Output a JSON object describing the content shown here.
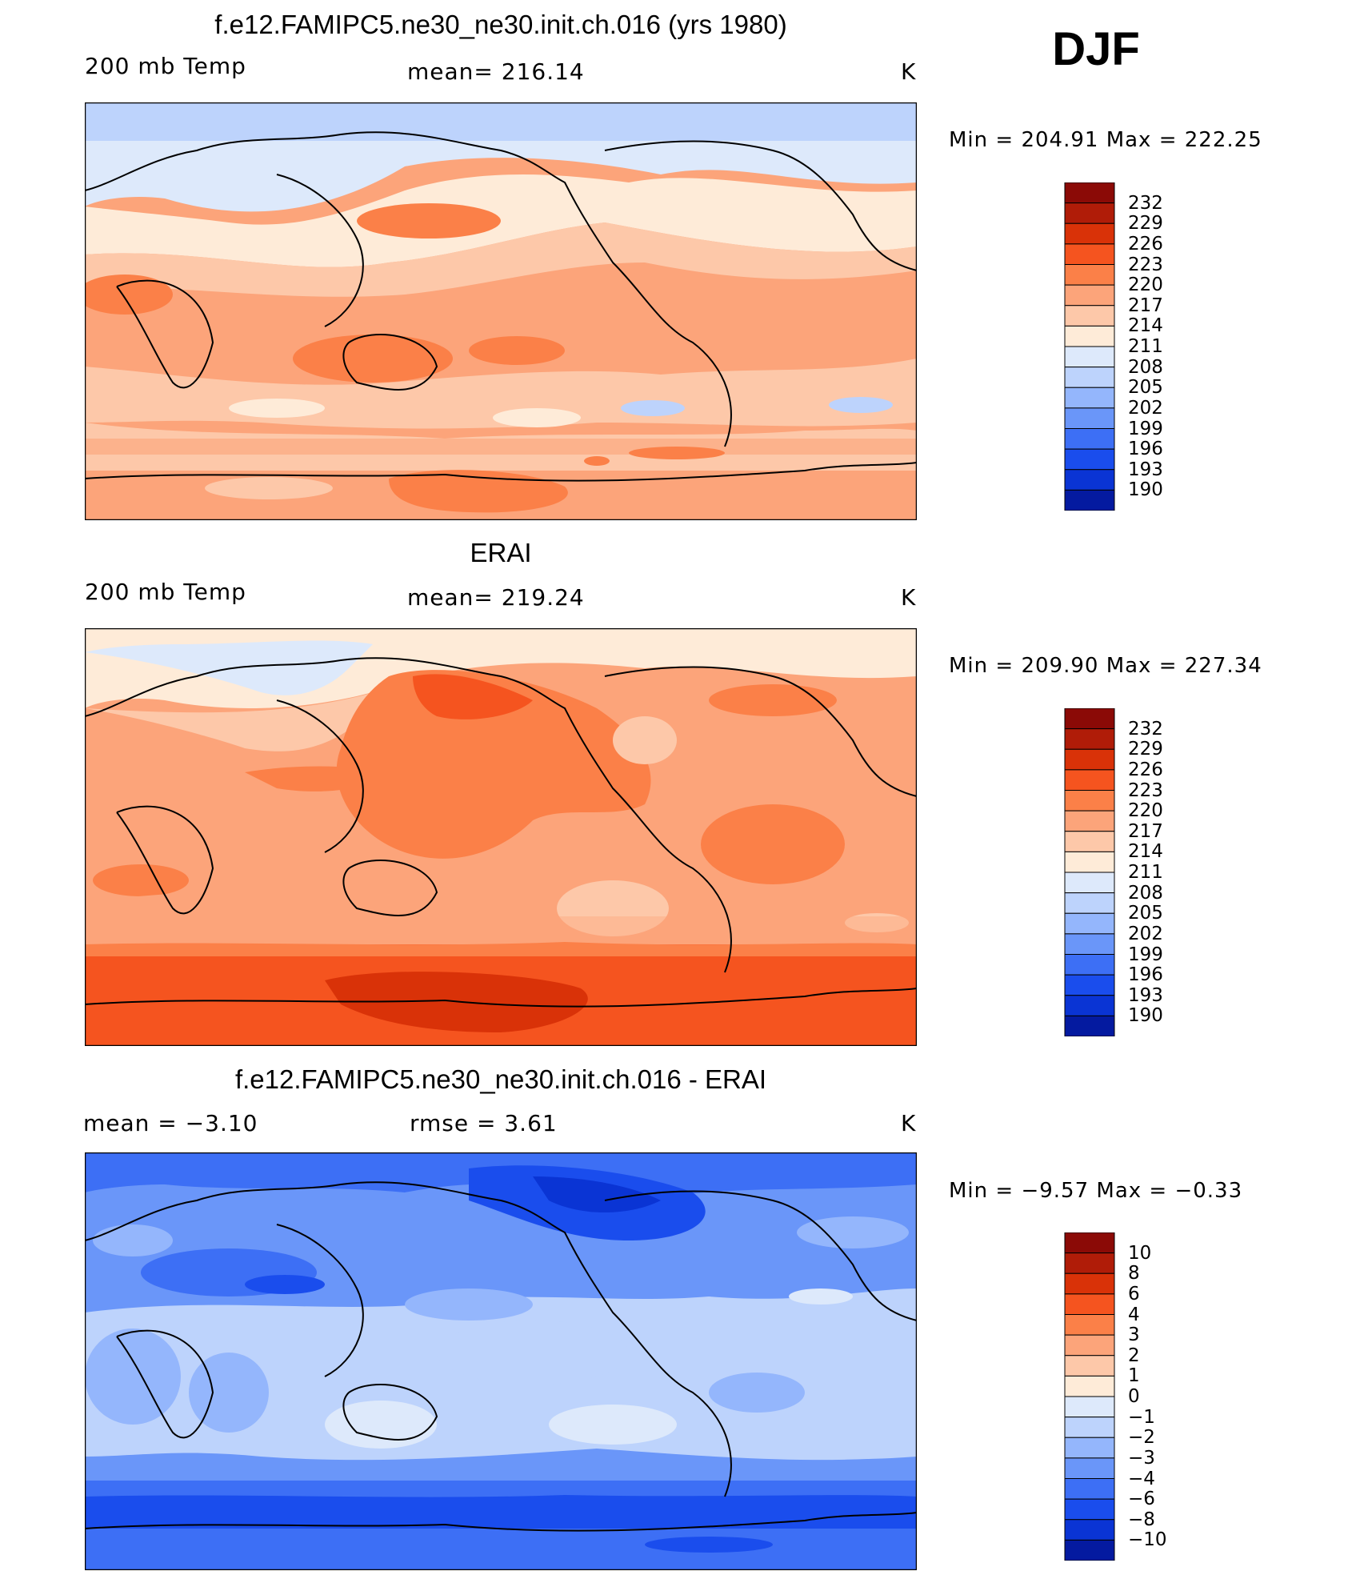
{
  "season": "DJF",
  "units": "K",
  "panels": [
    {
      "title": "f.e12.FAMIPC5.ne30_ne30.init.ch.016 (yrs 1980)",
      "left_label": "200 mb Temp",
      "center_label": "mean=  216.14",
      "right_label": "K",
      "minmax": "Min  =  204.91  Max  =  222.25",
      "colorbar_labels": [
        "232",
        "229",
        "226",
        "223",
        "220",
        "217",
        "214",
        "211",
        "208",
        "205",
        "202",
        "199",
        "196",
        "193",
        "190"
      ],
      "colorbar_colors": [
        "#8b0a06",
        "#b01c08",
        "#d93208",
        "#f5541f",
        "#fb8048",
        "#fca47a",
        "#fdc8a9",
        "#feebd8",
        "#dde9fb",
        "#bdd3fc",
        "#94b6fc",
        "#6a96f9",
        "#3d6ff5",
        "#1a4ded",
        "#0a34d4",
        "#041aa0"
      ]
    },
    {
      "title": "ERAI",
      "left_label": "200 mb Temp",
      "center_label": "mean=  219.24",
      "right_label": "K",
      "minmax": "Min  =  209.90  Max  =  227.34",
      "colorbar_labels": [
        "232",
        "229",
        "226",
        "223",
        "220",
        "217",
        "214",
        "211",
        "208",
        "205",
        "202",
        "199",
        "196",
        "193",
        "190"
      ],
      "colorbar_colors": [
        "#8b0a06",
        "#b01c08",
        "#d93208",
        "#f5541f",
        "#fb8048",
        "#fca47a",
        "#fdc8a9",
        "#feebd8",
        "#dde9fb",
        "#bdd3fc",
        "#94b6fc",
        "#6a96f9",
        "#3d6ff5",
        "#1a4ded",
        "#0a34d4",
        "#041aa0"
      ]
    },
    {
      "title": "f.e12.FAMIPC5.ne30_ne30.init.ch.016 - ERAI",
      "left_label": "mean  =     −3.10",
      "center_label": "rmse  =      3.61",
      "right_label": "K",
      "minmax": "Min  =    −9.57  Max  =    −0.33",
      "colorbar_labels": [
        "10",
        "8",
        "6",
        "4",
        "3",
        "2",
        "1",
        "0",
        "−1",
        "−2",
        "−3",
        "−4",
        "−6",
        "−8",
        "−10"
      ],
      "colorbar_colors": [
        "#8b0a06",
        "#b01c08",
        "#d93208",
        "#f5541f",
        "#fb8048",
        "#fca47a",
        "#fdc8a9",
        "#feebd8",
        "#dde9fb",
        "#bdd3fc",
        "#94b6fc",
        "#6a96f9",
        "#3d6ff5",
        "#1a4ded",
        "#0a34d4",
        "#041aa0"
      ]
    }
  ]
}
